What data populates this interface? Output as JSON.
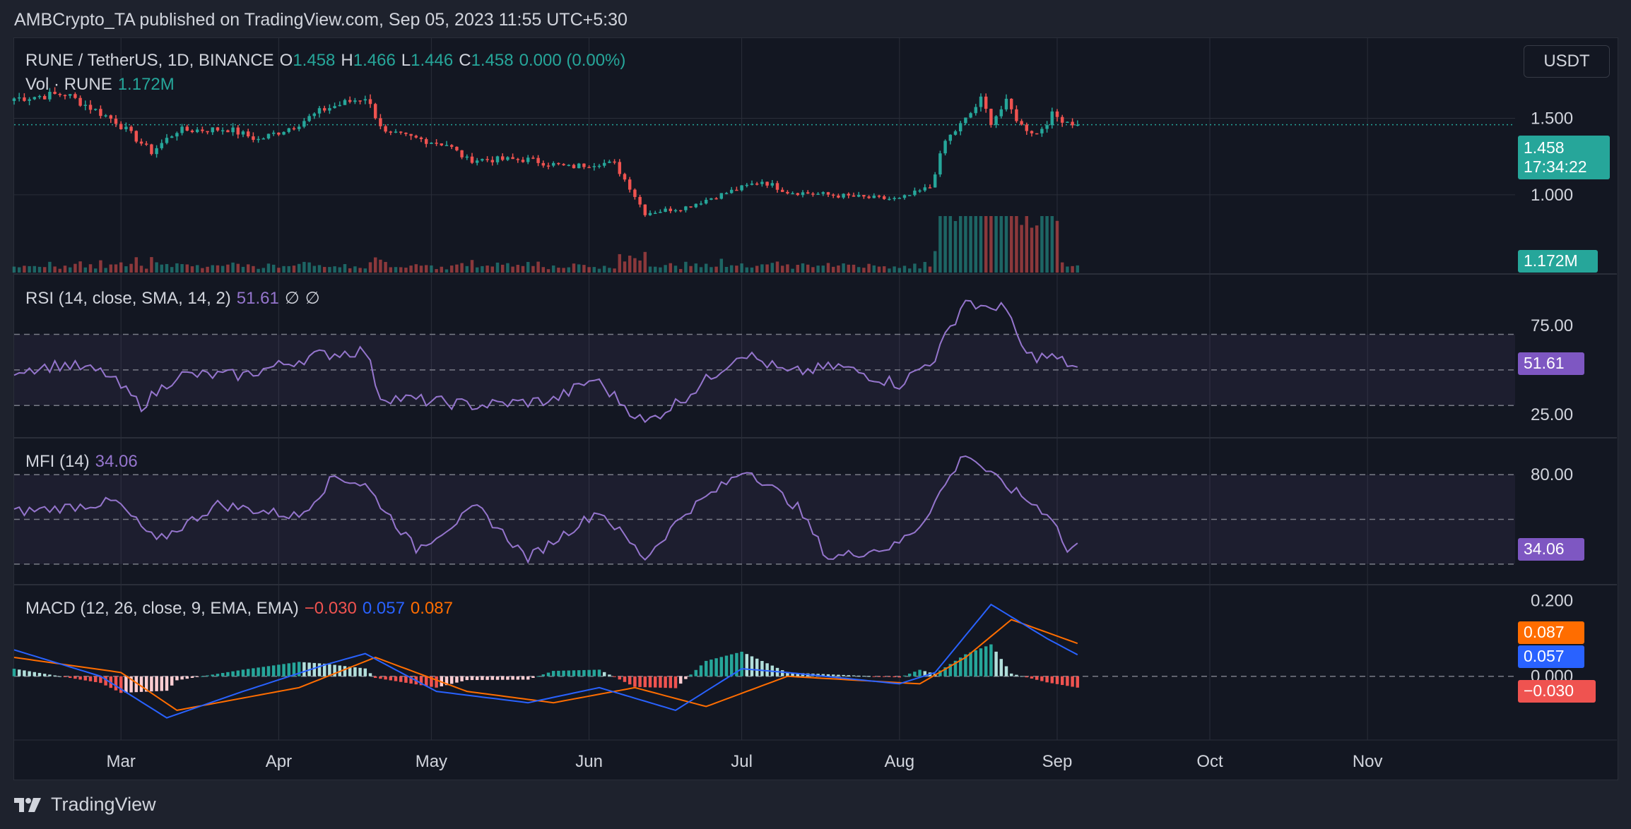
{
  "header": {
    "publisher": "AMBCrypto_TA published on TradingView.com, Sep 05, 2023 11:55 UTC+5:30"
  },
  "footer": {
    "brand": "TradingView"
  },
  "toolbar": {
    "currency": "USDT"
  },
  "colors": {
    "up": "#26a69a",
    "down": "#ef5350",
    "rsi": "#9575cd",
    "macd": "#2962ff",
    "signal": "#ff6d00",
    "hist_up": "#26a69a",
    "hist_up_light": "#b2dfdb",
    "hist_down": "#ef5350",
    "hist_down_light": "#ffcdd2",
    "background": "#131722"
  },
  "legend": {
    "symbol": "RUNE / TetherUS, 1D, BINANCE",
    "open_label": "O",
    "open": "1.458",
    "high_label": "H",
    "high": "1.466",
    "low_label": "L",
    "low": "1.446",
    "close_label": "C",
    "close": "1.458",
    "change": "0.000 (0.00%)",
    "vol_label": "Vol · RUNE",
    "vol": "1.172M",
    "rsi_label": "RSI (14, close, SMA, 14, 2)",
    "rsi_value": "51.61",
    "rsi_extra1": "∅",
    "rsi_extra2": "∅",
    "mfi_label": "MFI (14)",
    "mfi_value": "34.06",
    "macd_label": "MACD (12, 26, close, 9, EMA, EMA)",
    "macd_hist": "−0.030",
    "macd_line": "0.057",
    "macd_signal": "0.087"
  },
  "tags": {
    "price": "1.458",
    "countdown": "17:34:22",
    "volume": "1.172M",
    "rsi": "51.61",
    "mfi": "34.06",
    "signal": "0.087",
    "macd": "0.057",
    "hist": "−0.030"
  },
  "chart_data": {
    "type": "candlestick",
    "symbol": "RUNE / TetherUS",
    "interval": "1D",
    "exchange": "BINANCE",
    "x_tick_labels": [
      "Mar",
      "Apr",
      "May",
      "Jun",
      "Jul",
      "Aug",
      "Sep",
      "Oct",
      "Nov"
    ],
    "x_tick_dates": [
      "2023-03-01",
      "2023-04-01",
      "2023-05-01",
      "2023-06-01",
      "2023-07-01",
      "2023-08-01",
      "2023-09-01",
      "2023-10-01",
      "2023-11-01"
    ],
    "x_range": [
      "2023-02-08",
      "2023-11-30"
    ],
    "price_axis": {
      "ticks": [
        1.0,
        1.5
      ],
      "tick_labels": [
        "1.000",
        "1.500"
      ],
      "range": [
        0.75,
        1.95
      ]
    },
    "price_key_points": [
      {
        "date": "2023-02-08",
        "close": 1.63
      },
      {
        "date": "2023-02-18",
        "close": 1.66
      },
      {
        "date": "2023-02-28",
        "close": 1.48
      },
      {
        "date": "2023-03-07",
        "close": 1.28
      },
      {
        "date": "2023-03-12",
        "close": 1.42
      },
      {
        "date": "2023-03-22",
        "close": 1.43
      },
      {
        "date": "2023-03-28",
        "close": 1.36
      },
      {
        "date": "2023-04-04",
        "close": 1.45
      },
      {
        "date": "2023-04-10",
        "close": 1.56
      },
      {
        "date": "2023-04-18",
        "close": 1.64
      },
      {
        "date": "2023-04-22",
        "close": 1.4
      },
      {
        "date": "2023-04-26",
        "close": 1.38
      },
      {
        "date": "2023-05-04",
        "close": 1.33
      },
      {
        "date": "2023-05-08",
        "close": 1.23
      },
      {
        "date": "2023-05-20",
        "close": 1.23
      },
      {
        "date": "2023-05-28",
        "close": 1.18
      },
      {
        "date": "2023-06-03",
        "close": 1.21
      },
      {
        "date": "2023-06-06",
        "close": 1.2
      },
      {
        "date": "2023-06-09",
        "close": 1.05
      },
      {
        "date": "2023-06-12",
        "close": 0.88
      },
      {
        "date": "2023-06-20",
        "close": 0.92
      },
      {
        "date": "2023-06-25",
        "close": 0.98
      },
      {
        "date": "2023-07-05",
        "close": 1.09
      },
      {
        "date": "2023-07-10",
        "close": 1.02
      },
      {
        "date": "2023-07-18",
        "close": 1.0
      },
      {
        "date": "2023-07-26",
        "close": 0.98
      },
      {
        "date": "2023-08-01",
        "close": 0.97
      },
      {
        "date": "2023-08-07",
        "close": 1.05
      },
      {
        "date": "2023-08-10",
        "close": 1.35
      },
      {
        "date": "2023-08-14",
        "close": 1.49
      },
      {
        "date": "2023-08-17",
        "close": 1.62
      },
      {
        "date": "2023-08-19",
        "close": 1.48
      },
      {
        "date": "2023-08-22",
        "close": 1.6
      },
      {
        "date": "2023-08-25",
        "close": 1.45
      },
      {
        "date": "2023-08-28",
        "close": 1.4
      },
      {
        "date": "2023-08-31",
        "close": 1.52
      },
      {
        "date": "2023-09-05",
        "close": 1.458
      }
    ],
    "last_price": 1.458,
    "volume": {
      "last": "1.172M",
      "note": "spike in mid-August"
    },
    "rsi": {
      "params": "14, close, SMA, 14, 2",
      "last": 51.61,
      "levels": [
        30,
        50,
        70
      ],
      "axis_ticks": [
        25,
        75
      ],
      "axis_tick_labels": [
        "25.00",
        "75.00"
      ],
      "range": [
        15,
        100
      ],
      "key_points": [
        {
          "date": "2023-02-08",
          "value": 50
        },
        {
          "date": "2023-02-18",
          "value": 53
        },
        {
          "date": "2023-02-26",
          "value": 48
        },
        {
          "date": "2023-03-05",
          "value": 30
        },
        {
          "date": "2023-03-12",
          "value": 47
        },
        {
          "date": "2023-03-25",
          "value": 47
        },
        {
          "date": "2023-04-08",
          "value": 58
        },
        {
          "date": "2023-04-18",
          "value": 61
        },
        {
          "date": "2023-04-21",
          "value": 35
        },
        {
          "date": "2023-05-10",
          "value": 30
        },
        {
          "date": "2023-05-25",
          "value": 33
        },
        {
          "date": "2023-06-02",
          "value": 45
        },
        {
          "date": "2023-06-12",
          "value": 20
        },
        {
          "date": "2023-06-20",
          "value": 35
        },
        {
          "date": "2023-07-01",
          "value": 60
        },
        {
          "date": "2023-07-10",
          "value": 48
        },
        {
          "date": "2023-07-20",
          "value": 52
        },
        {
          "date": "2023-08-01",
          "value": 42
        },
        {
          "date": "2023-08-08",
          "value": 57
        },
        {
          "date": "2023-08-14",
          "value": 90
        },
        {
          "date": "2023-08-18",
          "value": 83
        },
        {
          "date": "2023-08-21",
          "value": 88
        },
        {
          "date": "2023-08-26",
          "value": 58
        },
        {
          "date": "2023-08-31",
          "value": 57
        },
        {
          "date": "2023-09-05",
          "value": 51.61
        }
      ]
    },
    "mfi": {
      "period": 14,
      "last": 34.06,
      "levels": [
        20,
        50,
        80
      ],
      "axis_ticks": [
        80
      ],
      "axis_tick_labels": [
        "80.00"
      ],
      "range": [
        10,
        100
      ],
      "key_points": [
        {
          "date": "2023-02-08",
          "value": 55
        },
        {
          "date": "2023-02-18",
          "value": 58
        },
        {
          "date": "2023-02-28",
          "value": 62
        },
        {
          "date": "2023-03-08",
          "value": 35
        },
        {
          "date": "2023-03-20",
          "value": 60
        },
        {
          "date": "2023-04-05",
          "value": 52
        },
        {
          "date": "2023-04-12",
          "value": 79
        },
        {
          "date": "2023-04-18",
          "value": 73
        },
        {
          "date": "2023-04-28",
          "value": 30
        },
        {
          "date": "2023-05-10",
          "value": 58
        },
        {
          "date": "2023-05-20",
          "value": 24
        },
        {
          "date": "2023-06-03",
          "value": 56
        },
        {
          "date": "2023-06-12",
          "value": 24
        },
        {
          "date": "2023-06-20",
          "value": 55
        },
        {
          "date": "2023-07-02",
          "value": 84
        },
        {
          "date": "2023-07-12",
          "value": 58
        },
        {
          "date": "2023-07-18",
          "value": 24
        },
        {
          "date": "2023-07-31",
          "value": 32
        },
        {
          "date": "2023-08-05",
          "value": 46
        },
        {
          "date": "2023-08-14",
          "value": 95
        },
        {
          "date": "2023-08-20",
          "value": 77
        },
        {
          "date": "2023-08-27",
          "value": 61
        },
        {
          "date": "2023-08-31",
          "value": 52
        },
        {
          "date": "2023-09-03",
          "value": 28
        },
        {
          "date": "2023-09-05",
          "value": 34.06
        }
      ]
    },
    "macd": {
      "params": "12, 26, close, 9, EMA, EMA",
      "last_macd": 0.057,
      "last_signal": 0.087,
      "last_histogram": -0.03,
      "axis_ticks": [
        0.0,
        0.2
      ],
      "axis_tick_labels": [
        "0.000",
        "0.200"
      ],
      "range": [
        -0.15,
        0.22
      ],
      "macd_key_points": [
        {
          "date": "2023-02-08",
          "value": 0.07
        },
        {
          "date": "2023-02-25",
          "value": 0.0
        },
        {
          "date": "2023-03-10",
          "value": -0.11
        },
        {
          "date": "2023-03-25",
          "value": -0.04
        },
        {
          "date": "2023-04-10",
          "value": 0.03
        },
        {
          "date": "2023-04-18",
          "value": 0.06
        },
        {
          "date": "2023-05-02",
          "value": -0.04
        },
        {
          "date": "2023-05-20",
          "value": -0.07
        },
        {
          "date": "2023-06-03",
          "value": -0.03
        },
        {
          "date": "2023-06-18",
          "value": -0.09
        },
        {
          "date": "2023-07-01",
          "value": 0.02
        },
        {
          "date": "2023-07-10",
          "value": 0.01
        },
        {
          "date": "2023-08-01",
          "value": -0.02
        },
        {
          "date": "2023-08-08",
          "value": 0.01
        },
        {
          "date": "2023-08-19",
          "value": 0.19
        },
        {
          "date": "2023-08-30",
          "value": 0.1
        },
        {
          "date": "2023-09-05",
          "value": 0.057
        }
      ],
      "signal_key_points": [
        {
          "date": "2023-02-08",
          "value": 0.05
        },
        {
          "date": "2023-03-01",
          "value": 0.01
        },
        {
          "date": "2023-03-12",
          "value": -0.09
        },
        {
          "date": "2023-04-05",
          "value": -0.03
        },
        {
          "date": "2023-04-20",
          "value": 0.05
        },
        {
          "date": "2023-05-08",
          "value": -0.04
        },
        {
          "date": "2023-05-25",
          "value": -0.07
        },
        {
          "date": "2023-06-10",
          "value": -0.03
        },
        {
          "date": "2023-06-24",
          "value": -0.08
        },
        {
          "date": "2023-07-10",
          "value": 0.0
        },
        {
          "date": "2023-08-05",
          "value": -0.02
        },
        {
          "date": "2023-08-14",
          "value": 0.05
        },
        {
          "date": "2023-08-23",
          "value": 0.15
        },
        {
          "date": "2023-09-05",
          "value": 0.087
        }
      ]
    }
  }
}
